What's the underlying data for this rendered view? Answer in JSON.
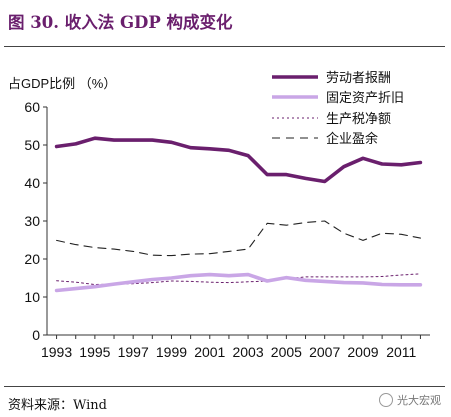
{
  "figure": {
    "title": "图 30. 收入法 GDP 构成变化",
    "source": "资料来源：Wind",
    "watermark": "光大宏观"
  },
  "chart_data": {
    "type": "line",
    "ylabel": "占GDP比例 （%）",
    "xlabel": "",
    "ylim": [
      0,
      60
    ],
    "yticks": [
      0,
      10,
      20,
      30,
      40,
      50,
      60
    ],
    "xticks": [
      "1993",
      "1995",
      "1997",
      "1999",
      "2001",
      "2003",
      "2005",
      "2007",
      "2009",
      "2011"
    ],
    "x": [
      1993,
      1994,
      1995,
      1996,
      1997,
      1998,
      1999,
      2000,
      2001,
      2002,
      2003,
      2004,
      2005,
      2006,
      2007,
      2008,
      2009,
      2010,
      2011,
      2012
    ],
    "grid": false,
    "legend_position": "top-right",
    "series": [
      {
        "name": "劳动者报酬",
        "color": "#6a1f6d",
        "style": "solid-thick",
        "values": [
          49.6,
          50.3,
          51.8,
          51.3,
          51.3,
          51.3,
          50.7,
          49.3,
          49.0,
          48.6,
          47.2,
          42.2,
          42.2,
          41.2,
          40.4,
          44.3,
          46.5,
          45.0,
          44.8,
          45.4
        ]
      },
      {
        "name": "固定资产折旧",
        "color": "#c9a6e6",
        "style": "solid-thick",
        "values": [
          11.7,
          12.2,
          12.7,
          13.4,
          14.0,
          14.6,
          15.0,
          15.6,
          15.9,
          15.6,
          15.9,
          14.2,
          15.1,
          14.4,
          14.1,
          13.8,
          13.7,
          13.3,
          13.2,
          13.2
        ]
      },
      {
        "name": "生产税净额",
        "color": "#6a1f6d",
        "style": "dotted",
        "values": [
          14.3,
          13.9,
          13.3,
          13.4,
          13.5,
          13.8,
          14.2,
          14.1,
          13.9,
          13.8,
          14.0,
          14.2,
          14.8,
          15.3,
          15.3,
          15.3,
          15.3,
          15.4,
          15.8,
          16.1
        ]
      },
      {
        "name": "企业盈余",
        "color": "#222222",
        "style": "dashed",
        "values": [
          24.9,
          23.8,
          23.0,
          22.6,
          22.0,
          21.0,
          20.9,
          21.3,
          21.4,
          22.0,
          22.6,
          29.4,
          28.9,
          29.6,
          30.0,
          26.8,
          24.9,
          26.8,
          26.5,
          25.5
        ]
      }
    ]
  }
}
